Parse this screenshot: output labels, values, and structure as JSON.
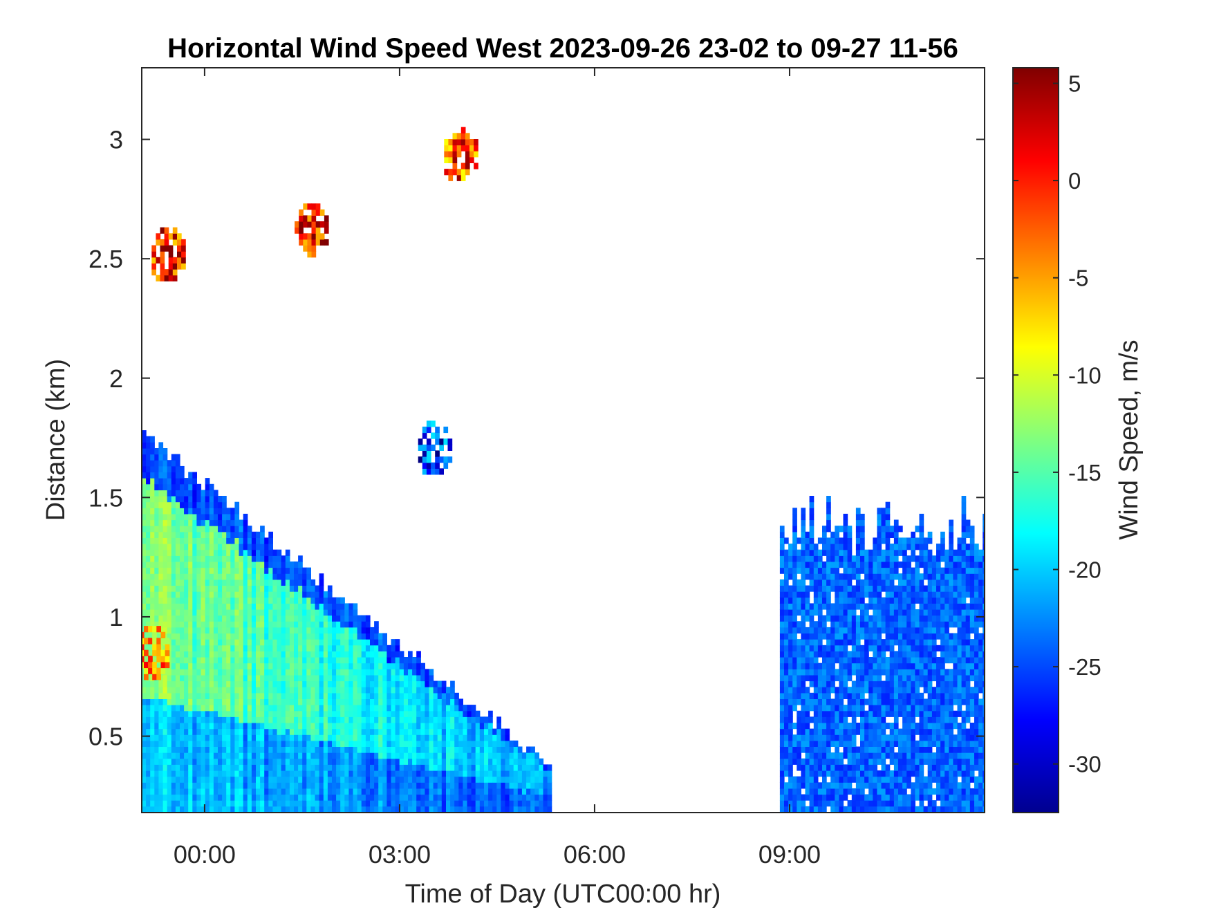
{
  "chart_data": {
    "type": "heatmap",
    "title": "Horizontal Wind Speed West 2023-09-26 23-02 to 09-27 11-56",
    "xlabel": "Time of Day (UTC00:00 hr)",
    "ylabel": "Distance (km)",
    "colorbar_label": "Wind Speed, m/s",
    "colormap": "jet",
    "x_range_hours": [
      -0.967,
      12.0
    ],
    "y_range_km": [
      0.18,
      3.3
    ],
    "x_ticks": [
      {
        "value": 0,
        "label": "00:00"
      },
      {
        "value": 3,
        "label": "03:00"
      },
      {
        "value": 6,
        "label": "06:00"
      },
      {
        "value": 9,
        "label": "09:00"
      }
    ],
    "y_ticks": [
      {
        "value": 0.5,
        "label": "0.5"
      },
      {
        "value": 1.0,
        "label": "1"
      },
      {
        "value": 1.5,
        "label": "1.5"
      },
      {
        "value": 2.0,
        "label": "2"
      },
      {
        "value": 2.5,
        "label": "2.5"
      },
      {
        "value": 3.0,
        "label": "3"
      }
    ],
    "color_range": [
      -32.5,
      5.8
    ],
    "colorbar_ticks": [
      {
        "value": 5,
        "label": "5"
      },
      {
        "value": 0,
        "label": "0"
      },
      {
        "value": -5,
        "label": "-5"
      },
      {
        "value": -10,
        "label": "-10"
      },
      {
        "value": -15,
        "label": "-15"
      },
      {
        "value": -20,
        "label": "-20"
      },
      {
        "value": -25,
        "label": "-25"
      },
      {
        "value": -30,
        "label": "-30"
      }
    ],
    "data_regions": [
      {
        "kind": "band_descending",
        "t_start": -0.967,
        "t_end": 5.3,
        "top_start_km": 1.75,
        "top_end_km": 0.35,
        "speed_low_alt": -20,
        "speed_mid_alt": -13,
        "speed_top": -25
      },
      {
        "kind": "block",
        "t_start": 8.85,
        "t_end": 12.0,
        "y_bottom_km": 0.18,
        "y_top_km": 1.5,
        "speed": -24
      },
      {
        "kind": "patch",
        "t_center": 3.5,
        "y_center_km": 1.69,
        "speed": -26
      },
      {
        "kind": "patch",
        "t_center": -0.6,
        "y_center_km": 2.5,
        "speed": 0
      },
      {
        "kind": "patch",
        "t_center": 1.6,
        "y_center_km": 2.6,
        "speed": 1
      },
      {
        "kind": "patch",
        "t_center": 3.9,
        "y_center_km": 2.92,
        "speed": -2
      },
      {
        "kind": "patch",
        "t_center": -0.85,
        "y_center_km": 0.83,
        "speed": -5
      }
    ]
  }
}
